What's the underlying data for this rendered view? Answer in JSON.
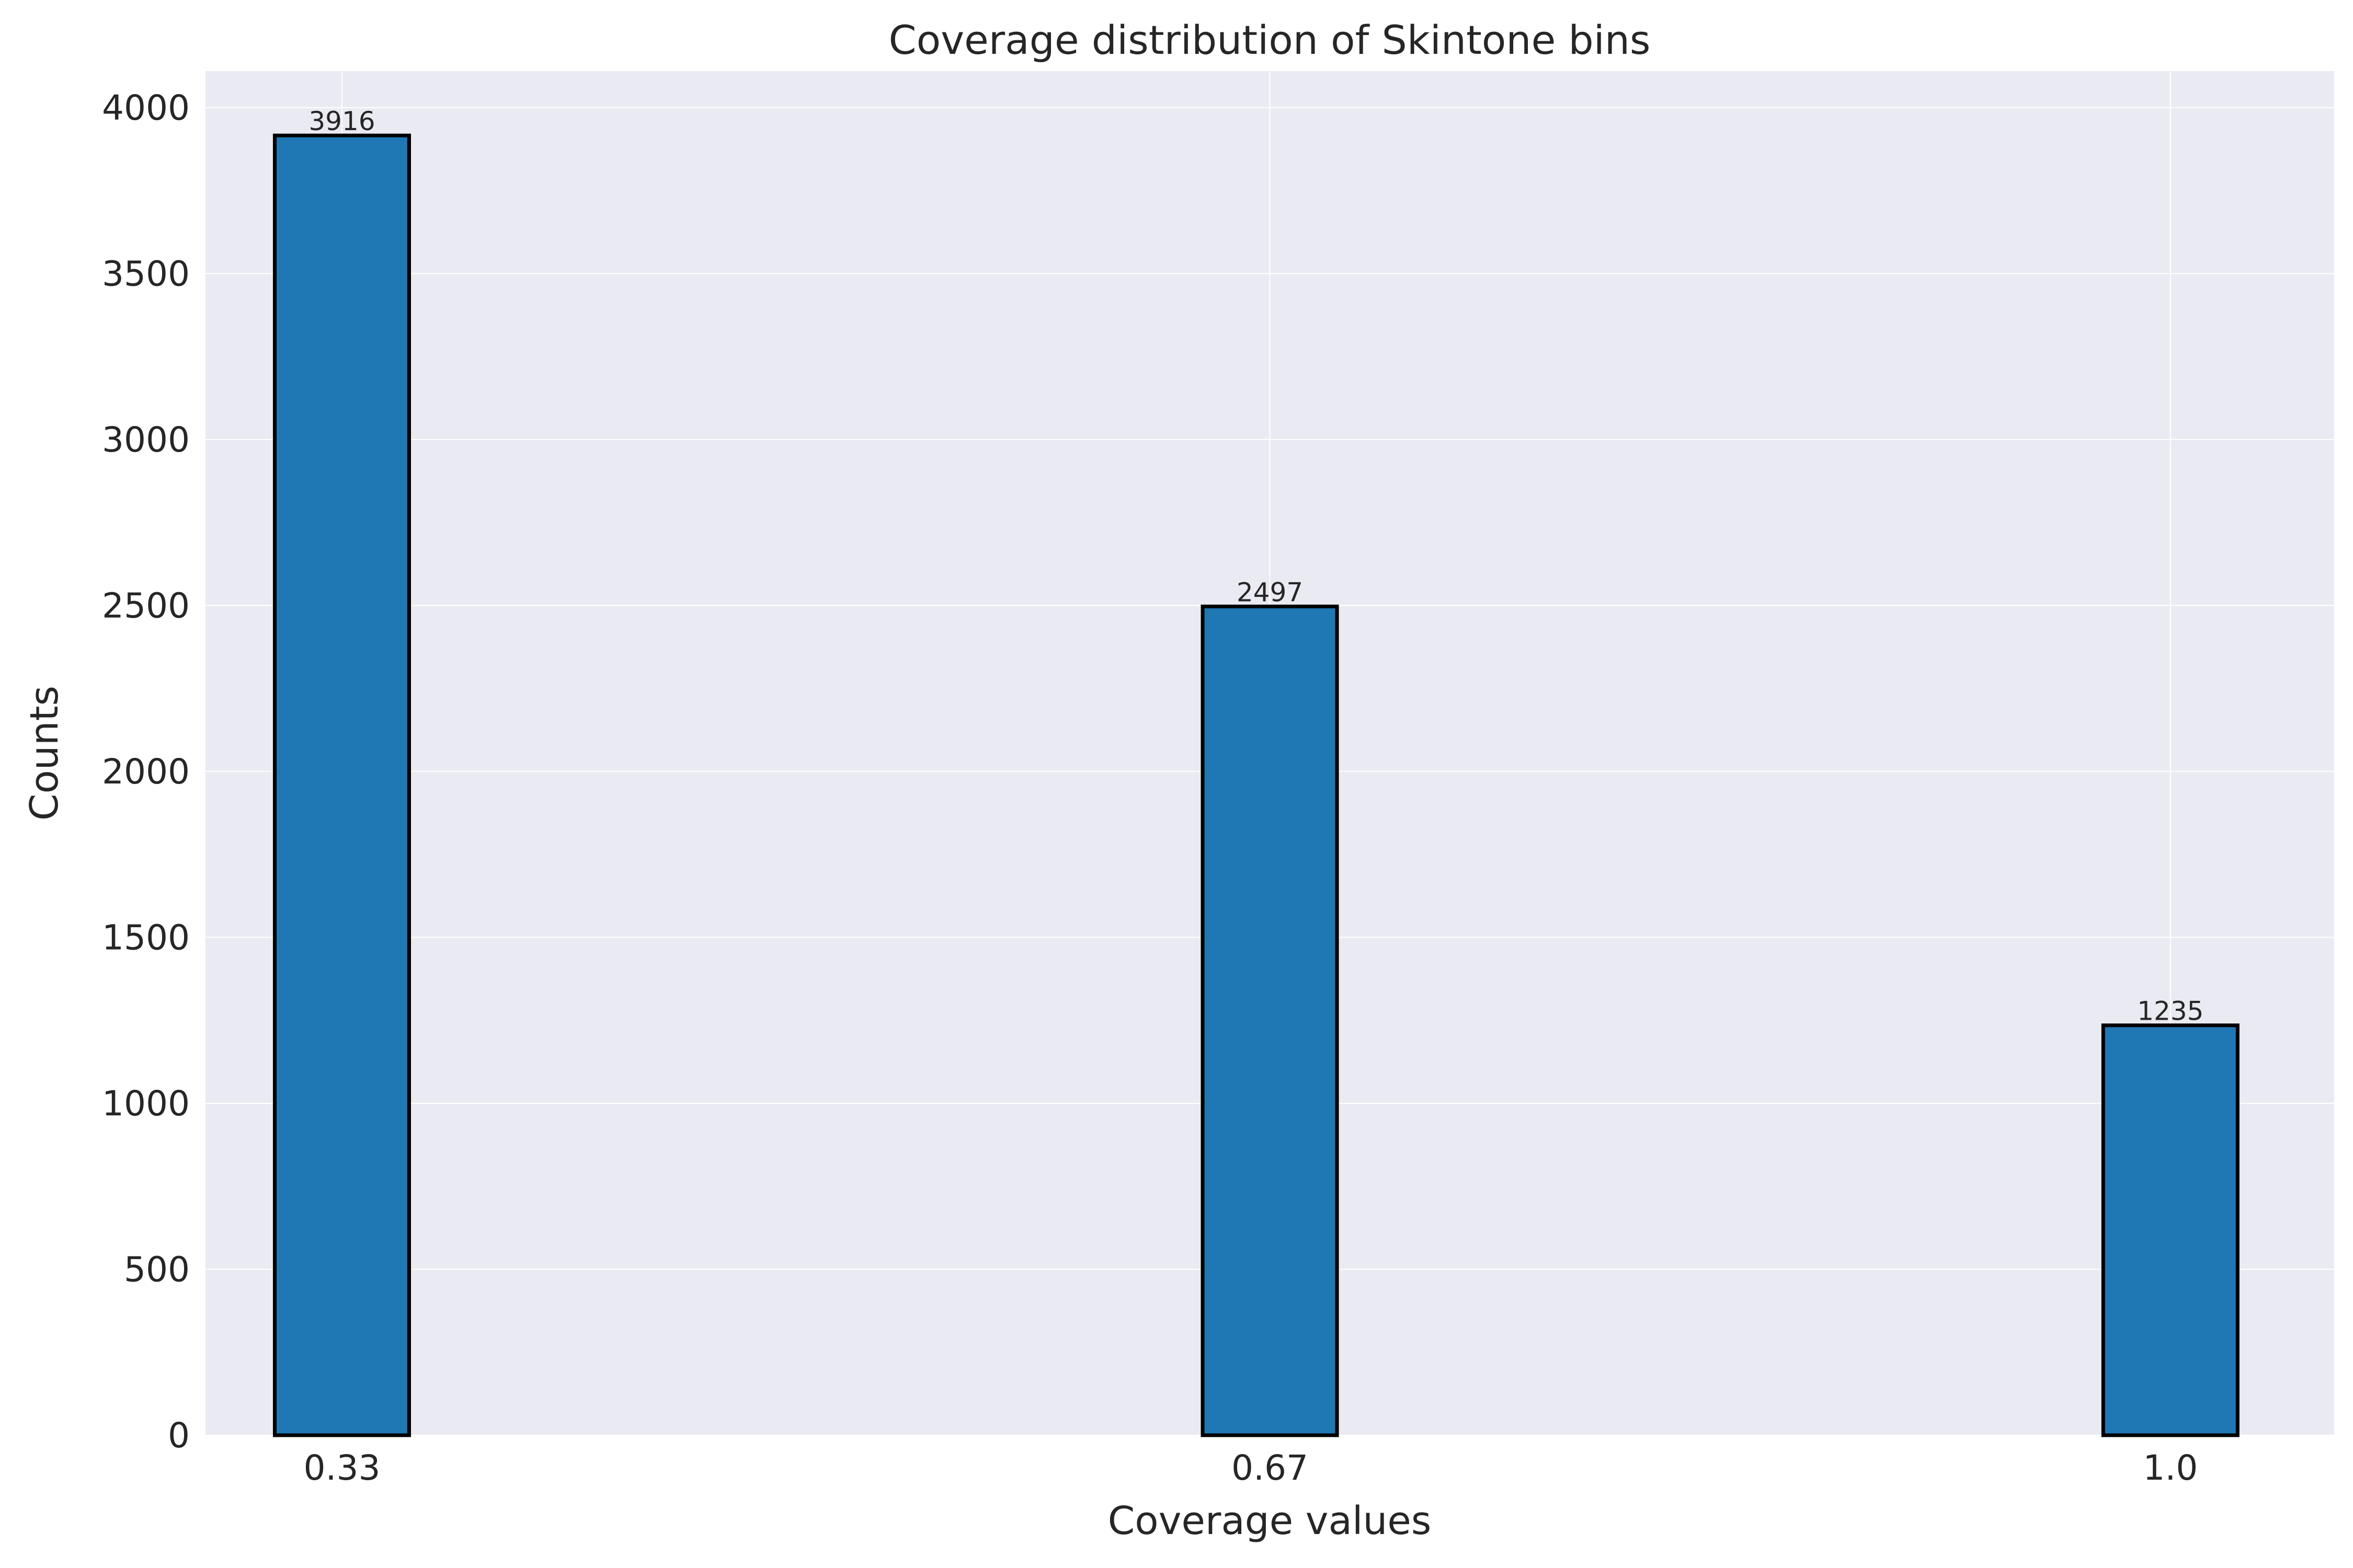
{
  "chart_data": {
    "type": "bar",
    "title": "Coverage distribution of Skintone bins",
    "xlabel": "Coverage values",
    "ylabel": "Counts",
    "categories": [
      "0.33",
      "0.67",
      "1.0"
    ],
    "x_values": [
      0.33,
      0.67,
      1.0
    ],
    "values": [
      3916,
      2497,
      1235
    ],
    "data_labels": [
      "3916",
      "2497",
      "1235"
    ],
    "ylim": [
      0,
      4110
    ],
    "xlim": [
      0.28,
      1.06
    ],
    "yticks": [
      0,
      500,
      1000,
      1500,
      2000,
      2500,
      3000,
      3500,
      4000
    ],
    "ytick_labels": [
      "0",
      "500",
      "1000",
      "1500",
      "2000",
      "2500",
      "3000",
      "3500",
      "4000"
    ],
    "grid": true,
    "colors": {
      "bar": "#1f77b4",
      "bar_edge": "#000000",
      "plot_background": "#eaeaf2",
      "grid": "#ffffff",
      "text": "#262626"
    }
  }
}
